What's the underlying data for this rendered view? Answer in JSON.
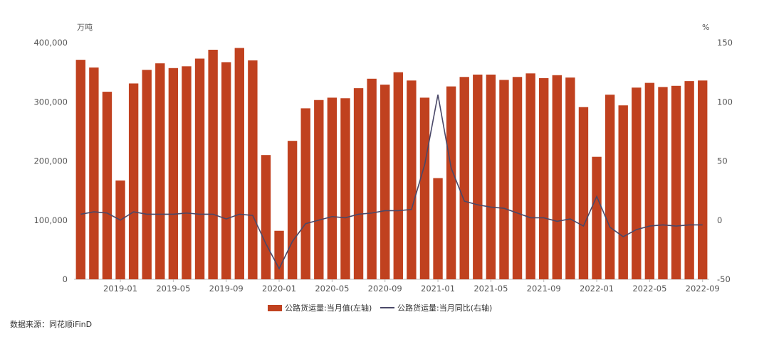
{
  "chart_data": {
    "type": "bar",
    "title": "",
    "left_axis_unit": "万吨",
    "right_axis_unit": "%",
    "ylim_left": [
      0,
      400000
    ],
    "ylim_right": [
      -50,
      150
    ],
    "left_ticks": [
      "0",
      "100,000",
      "200,000",
      "300,000",
      "400,000"
    ],
    "right_ticks": [
      "-50",
      "0",
      "50",
      "100",
      "150"
    ],
    "x_tick_labels": [
      "2019-01",
      "2019-05",
      "2019-09",
      "2020-01",
      "2020-05",
      "2020-09",
      "2021-01",
      "2021-05",
      "2021-09",
      "2022-01",
      "2022-05",
      "2022-09"
    ],
    "categories": [
      "2018-10",
      "2018-11",
      "2018-12",
      "2019-01",
      "2019-02",
      "2019-03",
      "2019-04",
      "2019-05",
      "2019-06",
      "2019-07",
      "2019-08",
      "2019-09",
      "2019-10",
      "2019-11",
      "2019-12",
      "2020-01",
      "2020-02",
      "2020-03",
      "2020-04",
      "2020-05",
      "2020-06",
      "2020-07",
      "2020-08",
      "2020-09",
      "2020-10",
      "2020-11",
      "2020-12",
      "2021-01",
      "2021-02",
      "2021-03",
      "2021-04",
      "2021-05",
      "2021-06",
      "2021-07",
      "2021-08",
      "2021-09",
      "2021-10",
      "2021-11",
      "2021-12",
      "2022-01",
      "2022-02",
      "2022-03",
      "2022-04",
      "2022-05",
      "2022-06",
      "2022-07",
      "2022-08",
      "2022-09"
    ],
    "series": [
      {
        "name": "公路货运量:当月值(左轴)",
        "axis": "left",
        "type": "bar",
        "color": "#C0411F",
        "values": [
          371000,
          358000,
          317000,
          167000,
          331000,
          354000,
          365000,
          357000,
          360000,
          373000,
          388000,
          367000,
          391000,
          370000,
          210000,
          82000,
          234000,
          289000,
          303000,
          307000,
          306000,
          323000,
          339000,
          329000,
          350000,
          336000,
          307000,
          171000,
          326000,
          342000,
          346000,
          346000,
          337000,
          342000,
          348000,
          340000,
          345000,
          341000,
          291000,
          207000,
          312000,
          294000,
          324000,
          332000,
          325000,
          327000,
          335000,
          336000
        ]
      },
      {
        "name": "公路货运量:当月同比(右轴)",
        "axis": "right",
        "type": "line",
        "color": "#4A4868",
        "values": [
          5,
          7,
          6,
          0,
          7,
          5,
          5,
          5,
          6,
          5,
          5,
          1,
          5,
          4,
          -20,
          -41,
          -18,
          -3,
          0,
          3,
          2,
          5,
          6,
          8,
          8,
          9,
          47,
          106,
          44,
          16,
          13,
          11,
          10,
          6,
          2,
          2,
          -1,
          1,
          -5,
          20,
          -6,
          -14,
          -8,
          -5,
          -4,
          -5,
          -4,
          -4
        ]
      }
    ],
    "legend_position": "bottom-center",
    "grid": false
  },
  "footer": {
    "source": "数据来源：同花顺iFinD"
  }
}
